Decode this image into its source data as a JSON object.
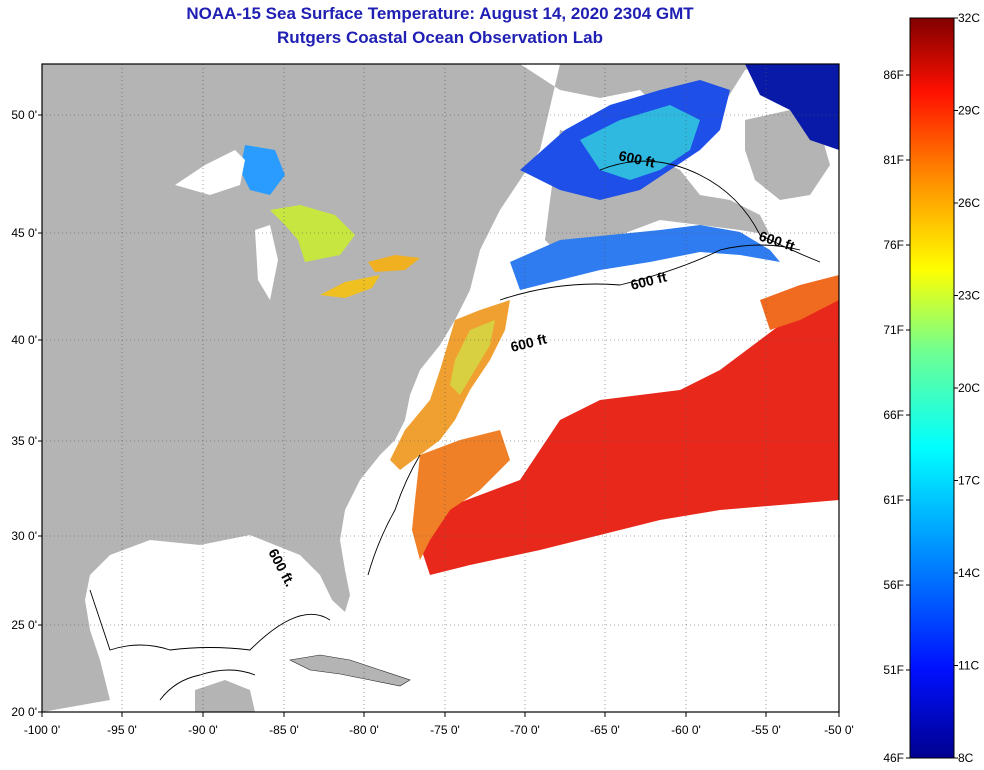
{
  "title_line1": "NOAA-15 Sea Surface Temperature:  August 14, 2020 2304 GMT",
  "title_line2": "Rutgers Coastal Ocean Observation Lab",
  "map": {
    "lon_labels": [
      "-100 0'",
      "-95 0'",
      "-90 0'",
      "-85 0'",
      "-80 0'",
      "-75 0'",
      "-70 0'",
      "-65 0'",
      "-60 0'",
      "-55 0'",
      "-50 0'"
    ],
    "lat_labels": [
      "50 0'",
      "45 0'",
      "40 0'",
      "35 0'",
      "30 0'",
      "25 0'",
      "20 0'"
    ],
    "contour_label": "600 ft",
    "contour_label_short": "600 ft."
  },
  "colorbar": {
    "celsius_labels": [
      "32C",
      "29C",
      "26C",
      "23C",
      "20C",
      "17C",
      "14C",
      "11C",
      "8C"
    ],
    "fahrenheit_labels": [
      "86F",
      "81F",
      "76F",
      "71F",
      "66F",
      "61F",
      "56F",
      "51F",
      "46F"
    ]
  },
  "colors": {
    "title": "#1f1fb4",
    "land": "#b4b4b4",
    "ocean_nodata": "#ffffff",
    "warm": "#e8281a",
    "cold": "#1a2fd0"
  }
}
